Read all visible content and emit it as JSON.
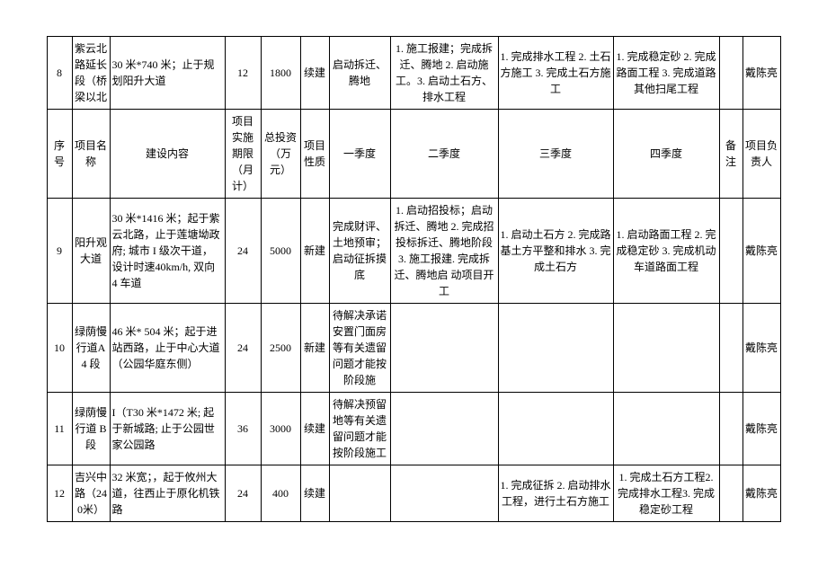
{
  "header": {
    "seq": "序号",
    "name": "项目名称",
    "content": "建设内容",
    "period": "项目实施期限（月计）",
    "invest": "总投资（万元）",
    "nature": "项目性质",
    "q1": "一季度",
    "q2": "二季度",
    "q3": "三季度",
    "q4": "四季度",
    "note": "备注",
    "owner": "项目负责人"
  },
  "rows": [
    {
      "seq": "8",
      "name": "紫云北路延长段（桥梁以北",
      "content": "30 米*740 米；止于规划阳升大道",
      "period": "12",
      "invest": "1800",
      "nature": "续建",
      "q1": "启动拆迁、腾地",
      "q2": "1. 施工报建；完成拆迁、腾地 2. 启动施工。3. 启动土石方、排水工程",
      "q3": "1. 完成排水工程 2. 土石方施工 3. 完成土石方施工",
      "q4": "1. 完成稳定砂 2. 完成路面工程 3. 完成道路其他扫尾工程",
      "note": "",
      "owner": "戴陈亮"
    },
    {
      "seq": "9",
      "name": "阳升观大道",
      "content": "30 米*1416 米；起于紫云北路，止于莲塘坳政府; 城市 I 级次干道，设计时速40km/h, 双向 4 车道",
      "period": "24",
      "invest": "5000",
      "nature": "新建",
      "q1": "完成财评、土地预审；启动征拆摸底",
      "q2": "1. 启动招投标；启动拆迁、腾地 2. 完成招投标拆迁、腾地阶段 3. 施工报建. 完成拆迁、腾地启\n动项目开工",
      "q3": "1. 启动土石方 2. 完成路基土方平整和排水 3. 完成土石方",
      "q4": "1. 启动路面工程 2. 完成稳定砂 3. 完成机动车道路面工程",
      "note": "",
      "owner": "戴陈亮"
    },
    {
      "seq": "10",
      "name": "绿荫慢行道A4 段",
      "content": "46 米* 504 米；起于进站西路，止于中心大道（公园华庭东侧）",
      "period": "24",
      "invest": "2500",
      "nature": "新建",
      "q1": "待解决承诺安置门面房等有关遗留问题才能按阶段施",
      "q2": "",
      "q3": "",
      "q4": "",
      "note": "",
      "owner": "戴陈亮"
    },
    {
      "seq": "11",
      "name": "绿荫慢行道 B 段",
      "content": "I（T30 米*1472 米; 起于新城路; 止于公园世家公园路",
      "period": "36",
      "invest": "3000",
      "nature": "续建",
      "q1": "待解决预留地等有关遗留问题才能按阶段施工",
      "q2": "",
      "q3": "",
      "q4": "",
      "note": "",
      "owner": "戴陈亮"
    },
    {
      "seq": "12",
      "name": "吉兴中路（240米）",
      "content": "32 米宽；，起于攸州大道，往西止于原化机铁路",
      "period": "24",
      "invest": "400",
      "nature": "续建",
      "q1": "",
      "q2": "",
      "q3": "1. 完成征拆 2. 启动排水工程，进行土石方施工",
      "q4": "1. 完成土石方工程2. 完成排水工程3. 完成稳定砂工程",
      "note": "",
      "owner": "戴陈亮"
    }
  ]
}
